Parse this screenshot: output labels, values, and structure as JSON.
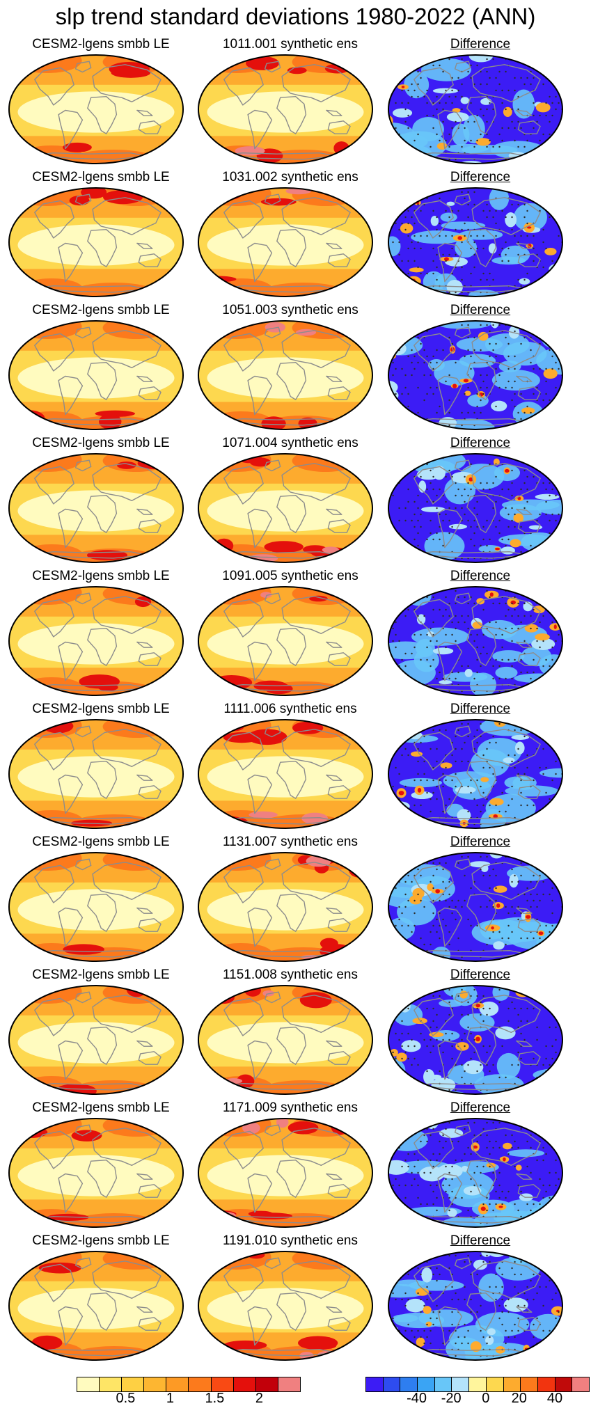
{
  "title": "slp trend standard deviations 1980-2022 (ANN)",
  "rows": [
    {
      "left": "CESM2-lgens smbb LE",
      "center": "1011.001 synthetic ens",
      "right": "Difference"
    },
    {
      "left": "CESM2-lgens smbb LE",
      "center": "1031.002 synthetic ens",
      "right": "Difference"
    },
    {
      "left": "CESM2-lgens smbb LE",
      "center": "1051.003 synthetic ens",
      "right": "Difference"
    },
    {
      "left": "CESM2-lgens smbb LE",
      "center": "1071.004 synthetic ens",
      "right": "Difference"
    },
    {
      "left": "CESM2-lgens smbb LE",
      "center": "1091.005 synthetic ens",
      "right": "Difference"
    },
    {
      "left": "CESM2-lgens smbb LE",
      "center": "1111.006 synthetic ens",
      "right": "Difference"
    },
    {
      "left": "CESM2-lgens smbb LE",
      "center": "1131.007 synthetic ens",
      "right": "Difference"
    },
    {
      "left": "CESM2-lgens smbb LE",
      "center": "1151.008 synthetic ens",
      "right": "Difference"
    },
    {
      "left": "CESM2-lgens smbb LE",
      "center": "1171.009 synthetic ens",
      "right": "Difference"
    },
    {
      "left": "CESM2-lgens smbb LE",
      "center": "1191.010 synthetic ens",
      "right": "Difference"
    }
  ],
  "colorbar_std": {
    "colors": [
      "#fffbbf",
      "#fee566",
      "#fed043",
      "#fdb631",
      "#fd9a25",
      "#fc7a1c",
      "#f94a14",
      "#e4100c",
      "#c2000a",
      "#f08080"
    ],
    "labels": [
      "0.5",
      "1",
      "1.5",
      "2"
    ]
  },
  "colorbar_diff": {
    "colors": [
      "#3c1cf5",
      "#2e4cf0",
      "#2e7ef0",
      "#3aa4f4",
      "#68c6f8",
      "#b4e3fa",
      "#fff59c",
      "#fdd84f",
      "#fdab2e",
      "#fc7a1c",
      "#f2340f",
      "#c00a0a",
      "#f08080"
    ],
    "labels": [
      "-40",
      "-20",
      "0",
      "20",
      "40"
    ]
  },
  "palette": {
    "land_outline": "#8c8c8c",
    "std_base": "#fdd84f",
    "std_light": "#fffbbf",
    "std_mid": "#fdab2e",
    "std_high": "#fc7a1c",
    "std_peak": "#e4100c",
    "std_max": "#f08080",
    "diff_base": "#3c1cf5",
    "diff_mid": "#68c6f8",
    "diff_pale": "#b4e3fa",
    "diff_pos": "#fdab2e",
    "diff_hot": "#e4100c",
    "stipple": "#2b2b2b"
  }
}
